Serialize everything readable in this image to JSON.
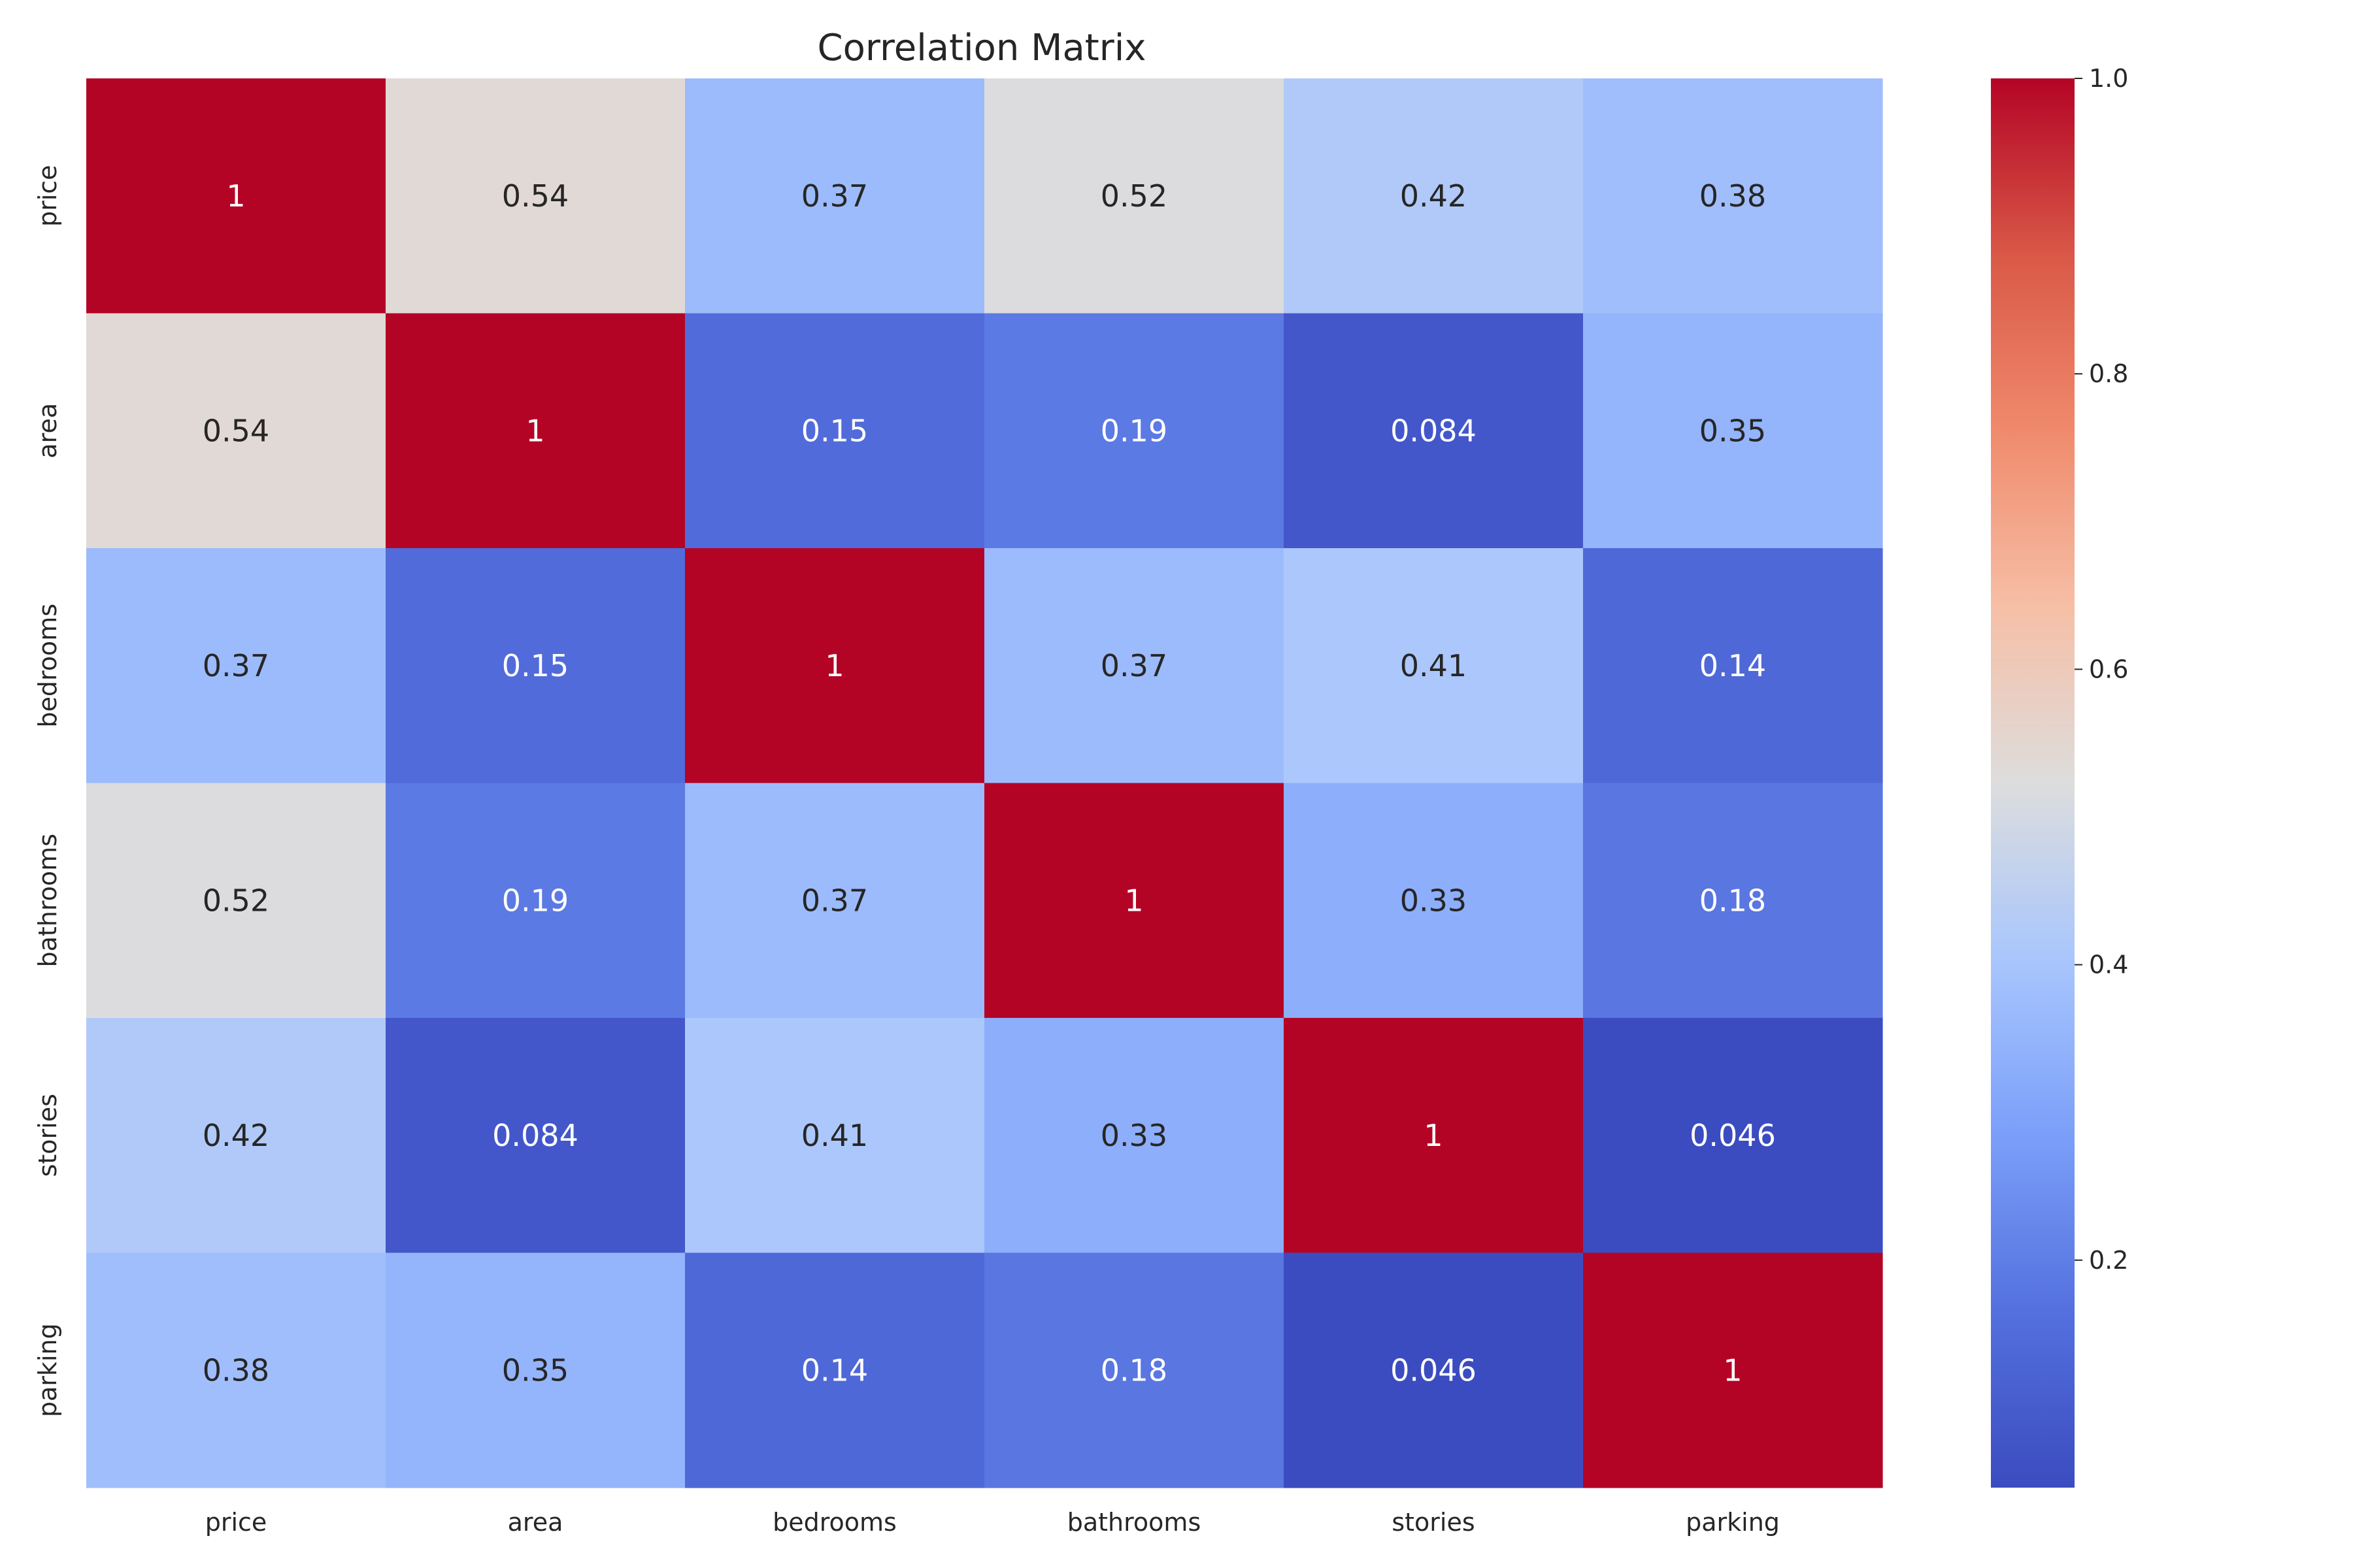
{
  "chart_data": {
    "type": "heatmap",
    "title": "Correlation Matrix",
    "x_labels": [
      "price",
      "area",
      "bedrooms",
      "bathrooms",
      "stories",
      "parking"
    ],
    "y_labels": [
      "price",
      "area",
      "bedrooms",
      "bathrooms",
      "stories",
      "parking"
    ],
    "values": [
      [
        1,
        0.54,
        0.37,
        0.52,
        0.42,
        0.38
      ],
      [
        0.54,
        1,
        0.15,
        0.19,
        0.084,
        0.35
      ],
      [
        0.37,
        0.15,
        1,
        0.37,
        0.41,
        0.14
      ],
      [
        0.52,
        0.19,
        0.37,
        1,
        0.33,
        0.18
      ],
      [
        0.42,
        0.084,
        0.41,
        0.33,
        1,
        0.046
      ],
      [
        0.38,
        0.35,
        0.14,
        0.18,
        0.046,
        1
      ]
    ],
    "value_labels": [
      [
        "1",
        "0.54",
        "0.37",
        "0.52",
        "0.42",
        "0.38"
      ],
      [
        "0.54",
        "1",
        "0.15",
        "0.19",
        "0.084",
        "0.35"
      ],
      [
        "0.37",
        "0.15",
        "1",
        "0.37",
        "0.41",
        "0.14"
      ],
      [
        "0.52",
        "0.19",
        "0.37",
        "1",
        "0.33",
        "0.18"
      ],
      [
        "0.42",
        "0.084",
        "0.41",
        "0.33",
        "1",
        "0.046"
      ],
      [
        "0.38",
        "0.35",
        "0.14",
        "0.18",
        "0.046",
        "1"
      ]
    ],
    "colormap": "coolwarm",
    "vmin": 0.046,
    "vmax": 1.0,
    "colorbar": {
      "position": "right",
      "ticks": [
        0.2,
        0.4,
        0.6,
        0.8,
        1.0
      ],
      "tick_labels": [
        "0.2",
        "0.4",
        "0.6",
        "0.8",
        "1.0"
      ]
    },
    "grid": false
  }
}
